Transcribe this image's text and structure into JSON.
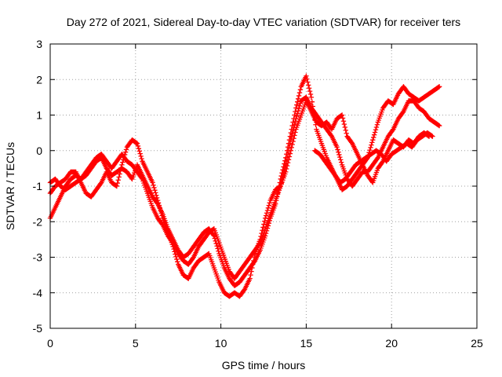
{
  "chart_data": {
    "type": "scatter",
    "title": "Day 272 of 2021, Sidereal Day-to-day VTEC variation (SDTVAR) for receiver ters",
    "xlabel": "GPS time / hours",
    "ylabel": "SDTVAR / TECUs",
    "xlim": [
      0,
      25
    ],
    "ylim": [
      -5,
      3
    ],
    "xticks": [
      "0",
      "5",
      "10",
      "15",
      "20",
      "25"
    ],
    "yticks": [
      "-5",
      "-4",
      "-3",
      "-2",
      "-1",
      "0",
      "1",
      "2",
      "3"
    ],
    "grid": true,
    "marker": "plus",
    "color": "#ff0000",
    "series": [
      {
        "points": [
          [
            0.0,
            -1.9
          ],
          [
            0.3,
            -1.6
          ],
          [
            0.6,
            -1.3
          ],
          [
            0.9,
            -1.0
          ],
          [
            1.2,
            -0.8
          ],
          [
            1.5,
            -0.7
          ],
          [
            1.8,
            -0.8
          ],
          [
            2.1,
            -0.6
          ],
          [
            2.4,
            -0.4
          ],
          [
            2.7,
            -0.2
          ],
          [
            3.0,
            -0.1
          ],
          [
            3.3,
            -0.3
          ],
          [
            3.6,
            -0.5
          ],
          [
            3.9,
            -0.3
          ],
          [
            4.2,
            -0.1
          ],
          [
            4.5,
            -0.3
          ],
          [
            4.8,
            -0.4
          ],
          [
            5.1,
            -0.6
          ],
          [
            5.4,
            -0.8
          ],
          [
            5.7,
            -1.2
          ],
          [
            6.0,
            -1.6
          ],
          [
            6.3,
            -1.9
          ],
          [
            6.6,
            -2.1
          ],
          [
            6.9,
            -2.4
          ],
          [
            7.2,
            -2.6
          ],
          [
            7.5,
            -2.9
          ],
          [
            7.8,
            -3.1
          ],
          [
            8.1,
            -3.2
          ],
          [
            8.4,
            -3.0
          ],
          [
            8.7,
            -2.7
          ],
          [
            9.0,
            -2.5
          ],
          [
            9.3,
            -2.3
          ],
          [
            9.6,
            -2.2
          ],
          [
            9.9,
            -2.6
          ],
          [
            10.2,
            -3.0
          ],
          [
            10.5,
            -3.4
          ],
          [
            10.8,
            -3.6
          ],
          [
            11.1,
            -3.4
          ],
          [
            11.4,
            -3.2
          ],
          [
            11.7,
            -3.0
          ],
          [
            12.0,
            -2.8
          ],
          [
            12.3,
            -2.6
          ],
          [
            12.6,
            -2.2
          ],
          [
            12.9,
            -1.8
          ],
          [
            13.2,
            -1.4
          ],
          [
            13.5,
            -1.0
          ],
          [
            13.8,
            -0.4
          ],
          [
            14.1,
            0.3
          ],
          [
            14.4,
            0.9
          ],
          [
            14.7,
            1.4
          ],
          [
            15.0,
            1.5
          ],
          [
            15.3,
            1.2
          ],
          [
            15.6,
            1.0
          ],
          [
            15.9,
            0.8
          ],
          [
            16.2,
            0.6
          ],
          [
            16.5,
            0.4
          ],
          [
            16.8,
            0.1
          ],
          [
            17.1,
            -0.4
          ],
          [
            17.4,
            -0.8
          ],
          [
            17.7,
            -1.0
          ],
          [
            18.0,
            -0.8
          ],
          [
            18.3,
            -0.6
          ],
          [
            18.6,
            -0.6
          ],
          [
            18.9,
            -0.4
          ],
          [
            19.2,
            -0.2
          ],
          [
            19.5,
            0.1
          ],
          [
            19.8,
            0.4
          ],
          [
            20.1,
            0.6
          ],
          [
            20.4,
            0.9
          ],
          [
            20.7,
            1.1
          ],
          [
            21.0,
            1.4
          ],
          [
            21.3,
            1.4
          ],
          [
            21.6,
            1.2
          ],
          [
            21.9,
            1.1
          ],
          [
            22.2,
            0.9
          ],
          [
            22.5,
            0.8
          ],
          [
            22.8,
            0.7
          ]
        ]
      },
      {
        "points": [
          [
            0.0,
            -1.2
          ],
          [
            0.3,
            -1.0
          ],
          [
            0.6,
            -0.9
          ],
          [
            0.9,
            -0.8
          ],
          [
            1.2,
            -0.6
          ],
          [
            1.5,
            -0.6
          ],
          [
            1.8,
            -0.9
          ],
          [
            2.1,
            -1.2
          ],
          [
            2.4,
            -1.3
          ],
          [
            2.7,
            -1.1
          ],
          [
            3.0,
            -0.9
          ],
          [
            3.3,
            -0.6
          ],
          [
            3.6,
            -0.9
          ],
          [
            3.9,
            -1.0
          ],
          [
            4.2,
            -0.4
          ],
          [
            4.5,
            0.1
          ],
          [
            4.8,
            0.3
          ],
          [
            5.1,
            0.2
          ],
          [
            5.4,
            -0.3
          ],
          [
            5.7,
            -0.6
          ],
          [
            6.0,
            -0.9
          ],
          [
            6.3,
            -1.4
          ],
          [
            6.6,
            -1.9
          ],
          [
            6.9,
            -2.3
          ],
          [
            7.2,
            -2.7
          ],
          [
            7.5,
            -3.2
          ],
          [
            7.8,
            -3.5
          ],
          [
            8.1,
            -3.6
          ],
          [
            8.4,
            -3.3
          ],
          [
            8.7,
            -3.1
          ],
          [
            9.0,
            -3.0
          ],
          [
            9.3,
            -2.9
          ],
          [
            9.6,
            -3.3
          ],
          [
            9.9,
            -3.7
          ],
          [
            10.2,
            -4.0
          ],
          [
            10.5,
            -4.1
          ],
          [
            10.8,
            -4.0
          ],
          [
            11.1,
            -4.1
          ],
          [
            11.4,
            -3.9
          ],
          [
            11.7,
            -3.6
          ],
          [
            12.0,
            -2.9
          ],
          [
            12.3,
            -2.5
          ],
          [
            12.6,
            -1.9
          ],
          [
            12.9,
            -1.4
          ],
          [
            13.2,
            -1.1
          ],
          [
            13.5,
            -1.0
          ],
          [
            13.8,
            -0.6
          ],
          [
            14.1,
            0.0
          ],
          [
            14.4,
            0.6
          ],
          [
            14.7,
            1.0
          ],
          [
            15.0,
            1.4
          ],
          [
            15.3,
            1.1
          ],
          [
            15.6,
            0.8
          ],
          [
            15.9,
            0.7
          ],
          [
            16.2,
            0.8
          ],
          [
            16.5,
            0.6
          ],
          [
            16.8,
            0.9
          ],
          [
            17.1,
            1.0
          ],
          [
            17.4,
            0.4
          ],
          [
            17.7,
            0.2
          ],
          [
            18.0,
            -0.1
          ],
          [
            18.3,
            -0.4
          ],
          [
            18.6,
            -0.7
          ],
          [
            18.9,
            -0.9
          ],
          [
            19.2,
            -0.5
          ],
          [
            19.5,
            -0.3
          ],
          [
            19.8,
            0.0
          ],
          [
            20.1,
            0.3
          ],
          [
            20.4,
            0.2
          ],
          [
            20.7,
            0.1
          ],
          [
            21.0,
            0.3
          ],
          [
            21.3,
            0.2
          ],
          [
            21.6,
            0.4
          ],
          [
            21.9,
            0.5
          ],
          [
            22.2,
            0.4
          ]
        ]
      },
      {
        "points": [
          [
            0.0,
            -0.9
          ],
          [
            0.3,
            -0.8
          ],
          [
            0.6,
            -1.0
          ],
          [
            0.9,
            -1.1
          ],
          [
            1.2,
            -1.0
          ],
          [
            1.5,
            -0.9
          ],
          [
            1.8,
            -0.8
          ],
          [
            2.1,
            -0.7
          ],
          [
            2.4,
            -0.5
          ],
          [
            2.7,
            -0.3
          ],
          [
            3.0,
            -0.2
          ],
          [
            3.3,
            -0.5
          ],
          [
            3.6,
            -0.7
          ],
          [
            3.9,
            -0.6
          ],
          [
            4.2,
            -0.5
          ],
          [
            4.5,
            -0.6
          ],
          [
            4.8,
            -0.8
          ],
          [
            5.1,
            -0.4
          ],
          [
            5.4,
            -0.7
          ],
          [
            5.7,
            -1.0
          ],
          [
            6.0,
            -1.3
          ],
          [
            6.3,
            -1.5
          ],
          [
            6.6,
            -1.8
          ],
          [
            6.9,
            -2.2
          ],
          [
            7.2,
            -2.5
          ],
          [
            7.5,
            -2.8
          ],
          [
            7.8,
            -3.0
          ],
          [
            8.1,
            -2.9
          ],
          [
            8.4,
            -2.7
          ],
          [
            8.7,
            -2.5
          ],
          [
            9.0,
            -2.3
          ],
          [
            9.3,
            -2.2
          ],
          [
            9.6,
            -2.4
          ],
          [
            9.9,
            -2.9
          ],
          [
            10.2,
            -3.3
          ],
          [
            10.5,
            -3.6
          ],
          [
            10.8,
            -3.8
          ],
          [
            11.1,
            -3.7
          ],
          [
            11.4,
            -3.5
          ],
          [
            11.7,
            -3.3
          ],
          [
            12.0,
            -3.1
          ],
          [
            12.3,
            -2.8
          ],
          [
            12.6,
            -2.4
          ],
          [
            12.9,
            -1.9
          ],
          [
            13.2,
            -1.5
          ],
          [
            13.5,
            -0.8
          ],
          [
            13.8,
            -0.2
          ],
          [
            14.1,
            0.5
          ],
          [
            14.4,
            1.2
          ],
          [
            14.7,
            1.8
          ],
          [
            15.0,
            2.1
          ],
          [
            15.3,
            1.5
          ],
          [
            15.6,
            0.6
          ],
          [
            15.9,
            0.2
          ],
          [
            16.2,
            -0.2
          ],
          [
            16.5,
            -0.5
          ],
          [
            16.8,
            -0.8
          ],
          [
            17.1,
            -1.1
          ],
          [
            17.4,
            -1.0
          ],
          [
            17.7,
            -0.8
          ],
          [
            18.0,
            -0.6
          ],
          [
            18.3,
            -0.4
          ],
          [
            18.6,
            -0.2
          ],
          [
            18.9,
            0.3
          ],
          [
            19.2,
            0.8
          ],
          [
            19.5,
            1.2
          ],
          [
            19.8,
            1.4
          ],
          [
            20.1,
            1.3
          ],
          [
            20.4,
            1.6
          ],
          [
            20.7,
            1.8
          ],
          [
            21.0,
            1.6
          ],
          [
            21.3,
            1.5
          ],
          [
            21.6,
            1.4
          ],
          [
            21.9,
            1.5
          ],
          [
            22.2,
            1.6
          ],
          [
            22.5,
            1.7
          ],
          [
            22.8,
            1.8
          ]
        ]
      },
      {
        "points": [
          [
            15.5,
            0.0
          ],
          [
            15.8,
            -0.1
          ],
          [
            16.1,
            -0.3
          ],
          [
            16.4,
            -0.5
          ],
          [
            16.7,
            -0.7
          ],
          [
            17.0,
            -0.9
          ],
          [
            17.3,
            -0.8
          ],
          [
            17.6,
            -0.6
          ],
          [
            17.9,
            -0.4
          ],
          [
            18.2,
            -0.3
          ],
          [
            18.5,
            -0.2
          ],
          [
            18.8,
            -0.1
          ],
          [
            19.1,
            0.0
          ],
          [
            19.4,
            -0.1
          ],
          [
            19.7,
            -0.3
          ],
          [
            20.0,
            -0.1
          ],
          [
            20.3,
            0.0
          ],
          [
            20.6,
            0.1
          ],
          [
            20.9,
            0.2
          ],
          [
            21.2,
            0.1
          ],
          [
            21.5,
            0.3
          ],
          [
            21.8,
            0.4
          ],
          [
            22.1,
            0.5
          ],
          [
            22.4,
            0.4
          ]
        ]
      }
    ]
  }
}
